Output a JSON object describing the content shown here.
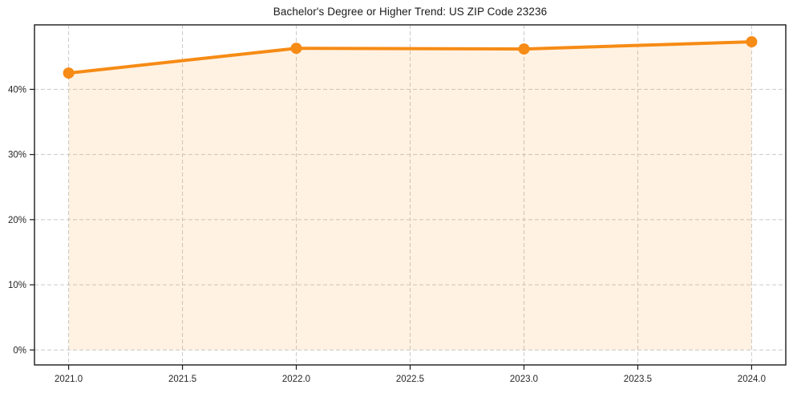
{
  "chart_data": {
    "type": "area",
    "title": "Bachelor's Degree or Higher Trend: US ZIP Code 23236",
    "series_name": "Bachelor's Degree or Higher (%)",
    "x": [
      2021.0,
      2022.0,
      2023.0,
      2024.0
    ],
    "values": [
      42.5,
      46.3,
      46.2,
      47.3
    ],
    "xlabel": "",
    "ylabel": "",
    "xlim": [
      2020.85,
      2024.15
    ],
    "ylim": [
      -2.3,
      49.9
    ],
    "xticks": {
      "values": [
        2021.0,
        2021.5,
        2022.0,
        2022.5,
        2023.0,
        2023.5,
        2024.0
      ],
      "labels": [
        "2021.0",
        "2021.5",
        "2022.0",
        "2022.5",
        "2023.0",
        "2023.5",
        "2024.0"
      ]
    },
    "yticks": {
      "values": [
        0,
        10,
        20,
        30,
        40
      ],
      "labels": [
        "0%",
        "10%",
        "20%",
        "30%",
        "40%"
      ]
    },
    "grid": true,
    "grid_style": "dashed",
    "legend_position": "none",
    "marker": "circle",
    "colors": {
      "line": "#f68b15",
      "marker": "#f68b15",
      "fill": "rgba(255, 140, 0, 0.11)",
      "grid": "#c9c9c9",
      "spine": "#1a1a1a",
      "text": "#262626",
      "background": "#ffffff"
    }
  }
}
